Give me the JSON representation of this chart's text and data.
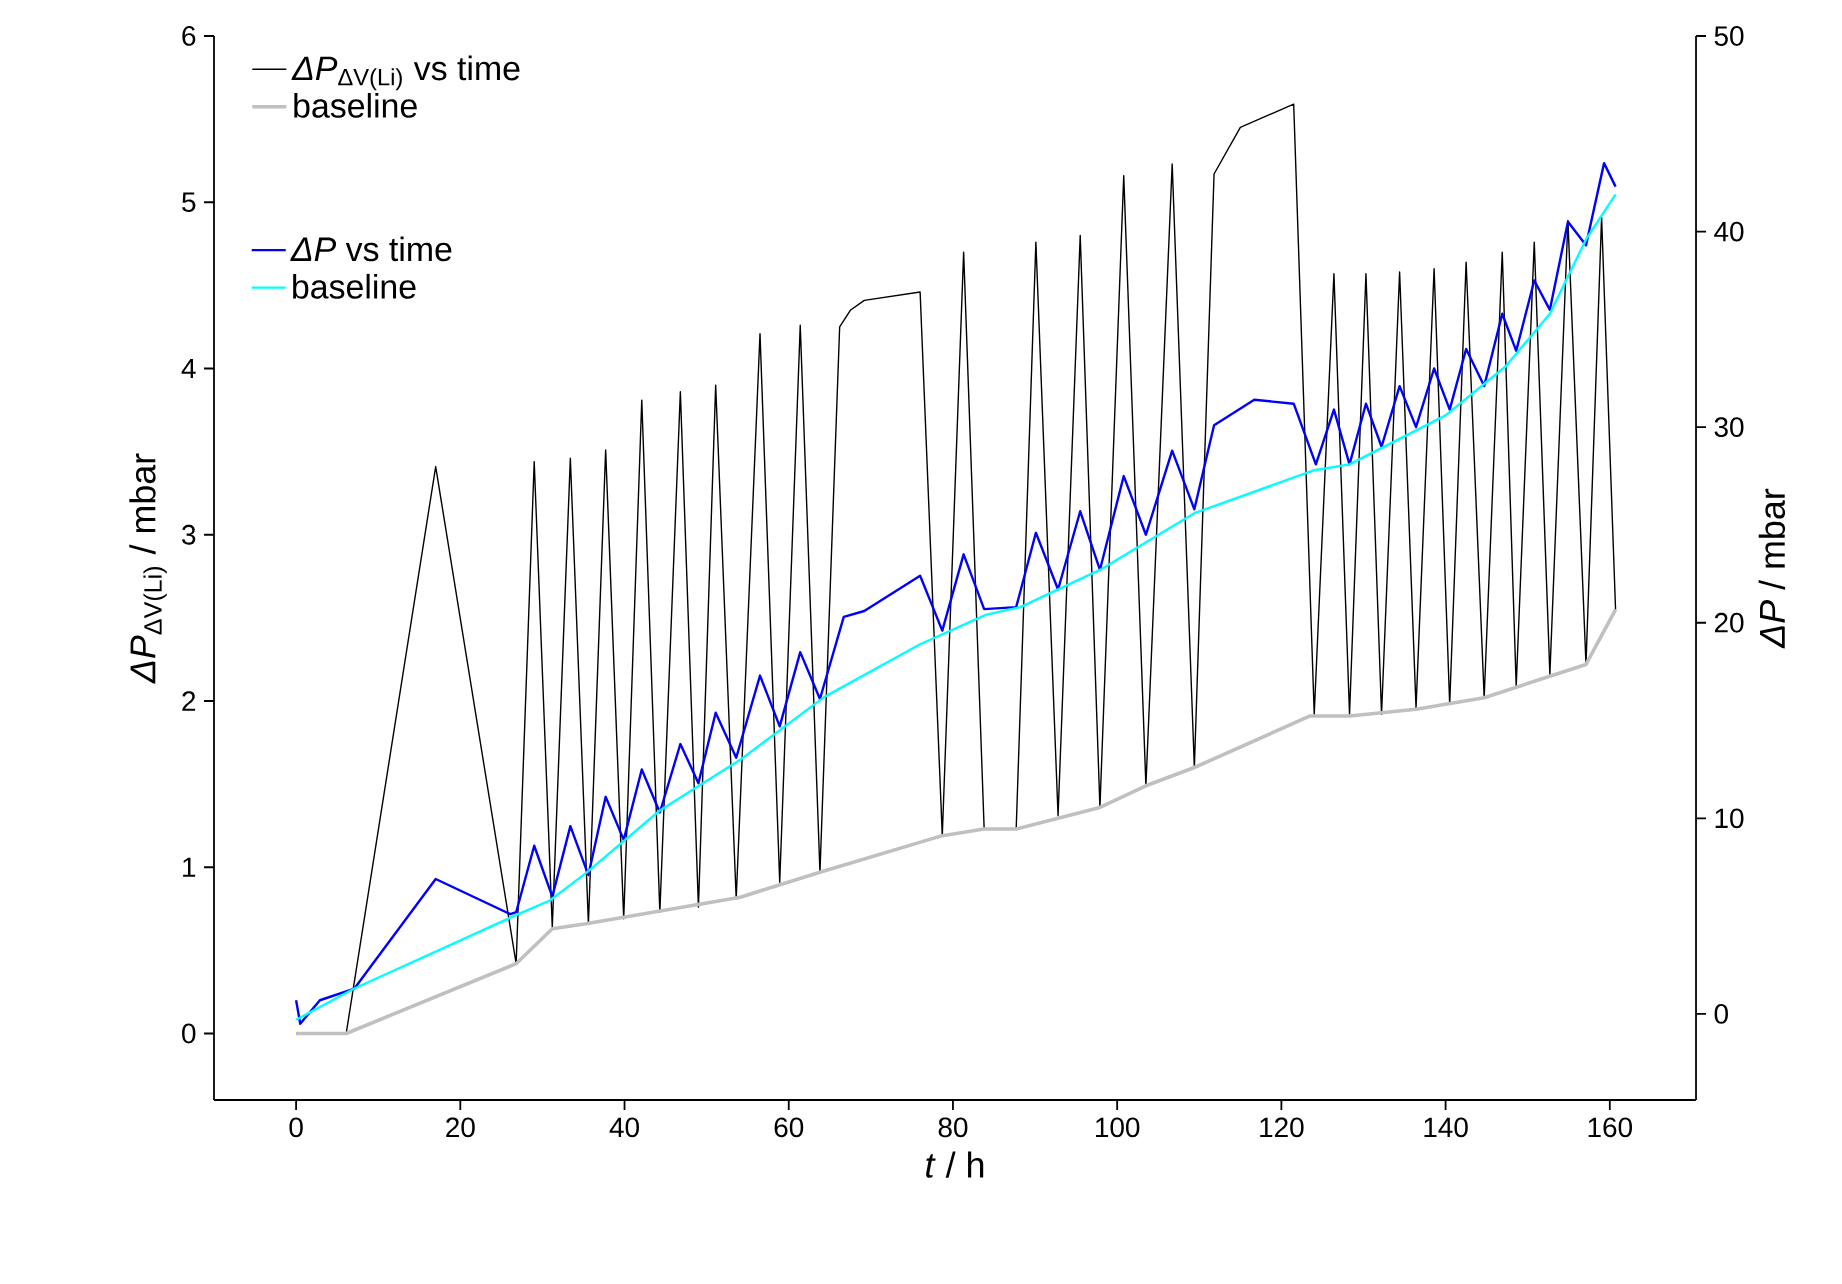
{
  "chart_data": {
    "type": "line",
    "xlabel": "*t* / h",
    "ylabel": "*ΔP*$_{ΔV(Li)}$ / mbar",
    "y2label": "*ΔP* / mbar",
    "xlim": [
      -10,
      170.5
    ],
    "xticks": [
      0,
      20,
      40,
      60,
      80,
      100,
      120,
      140,
      160
    ],
    "ylim": [
      -0.4,
      6
    ],
    "yticks": [
      0,
      1,
      2,
      3,
      4,
      5,
      6
    ],
    "y2lim": [
      -4.4,
      50
    ],
    "y2ticks": [
      0,
      10,
      20,
      30,
      40,
      50
    ],
    "legend": "top left",
    "grid": false,
    "series": [
      {
        "name": "*ΔP*$_{ΔV(Li)}$ vs time",
        "color": "#000000",
        "axis": "y",
        "x": [
          0,
          6.1,
          17.0,
          26.8,
          29.0,
          31.2,
          33.4,
          35.6,
          37.7,
          39.9,
          42.1,
          44.3,
          46.8,
          49.0,
          51.1,
          53.6,
          56.5,
          58.9,
          61.4,
          63.8,
          66.2,
          67.5,
          69.2,
          76.0,
          78.7,
          81.3,
          83.8,
          87.7,
          90.1,
          92.8,
          95.5,
          97.9,
          100.8,
          103.5,
          106.7,
          109.4,
          111.8,
          115.0,
          121.5,
          124.0,
          126.4,
          128.3,
          130.3,
          132.2,
          134.4,
          136.4,
          138.6,
          140.5,
          142.5,
          144.7,
          146.9,
          148.6,
          150.8,
          152.7,
          154.9,
          157.1,
          159.0,
          160.7
        ],
        "values": [
          0,
          0,
          3.41,
          0.42,
          3.44,
          0.64,
          3.46,
          0.66,
          3.51,
          0.69,
          3.81,
          0.73,
          3.86,
          0.76,
          3.9,
          0.81,
          4.21,
          0.91,
          4.26,
          0.97,
          4.25,
          4.35,
          4.41,
          4.46,
          1.19,
          4.7,
          1.23,
          1.23,
          4.76,
          1.31,
          4.8,
          1.36,
          5.16,
          1.49,
          5.23,
          1.6,
          5.17,
          5.45,
          5.59,
          1.92,
          4.57,
          1.92,
          4.57,
          1.92,
          4.58,
          1.96,
          4.6,
          1.98,
          4.64,
          2.02,
          4.7,
          2.09,
          4.76,
          2.16,
          4.89,
          2.22,
          4.91,
          2.55
        ]
      },
      {
        "name": "baseline",
        "color": "#c0c0c0",
        "axis": "y",
        "x": [
          0,
          6.1,
          26.8,
          31.2,
          35.3,
          54.1,
          63.8,
          78.7,
          83.8,
          87.7,
          97.9,
          103.5,
          109.4,
          123.5,
          128.3,
          136.4,
          144.7,
          157.1,
          160.7
        ],
        "values": [
          0,
          0,
          0.42,
          0.63,
          0.66,
          0.82,
          0.97,
          1.19,
          1.23,
          1.23,
          1.36,
          1.49,
          1.6,
          1.91,
          1.91,
          1.95,
          2.02,
          2.22,
          2.55
        ]
      },
      {
        "name": "*ΔP* vs time",
        "color": "#0000ff",
        "axis": "y2",
        "x": [
          0,
          0.5,
          2.9,
          7.1,
          17.0,
          26.1,
          26.8,
          29.0,
          31.2,
          33.4,
          35.6,
          37.7,
          39.9,
          42.1,
          44.3,
          46.8,
          49.0,
          51.1,
          53.6,
          56.5,
          58.9,
          61.4,
          63.8,
          66.7,
          69.2,
          76.0,
          78.7,
          81.3,
          83.8,
          87.7,
          90.1,
          92.8,
          95.5,
          97.9,
          100.8,
          103.5,
          106.7,
          109.4,
          111.8,
          116.7,
          121.5,
          124.2,
          126.4,
          128.3,
          130.3,
          132.2,
          134.4,
          136.4,
          138.6,
          140.5,
          142.5,
          144.7,
          146.9,
          148.6,
          150.8,
          152.7,
          154.9,
          157.1,
          159.3,
          160.7
        ],
        "values": [
          0.7,
          -0.5,
          0.7,
          1.3,
          6.9,
          5.1,
          5.2,
          8.6,
          6.0,
          9.6,
          7.1,
          11.1,
          8.9,
          12.5,
          10.3,
          13.8,
          11.8,
          15.4,
          13.1,
          17.3,
          14.7,
          18.5,
          16.1,
          20.3,
          20.6,
          22.4,
          19.6,
          23.5,
          20.7,
          20.8,
          24.6,
          21.7,
          25.7,
          22.7,
          27.5,
          24.5,
          28.8,
          25.8,
          30.1,
          31.4,
          31.2,
          28.1,
          30.9,
          28.1,
          31.2,
          29.0,
          32.1,
          30.0,
          33.0,
          30.9,
          34.0,
          32.1,
          35.8,
          33.9,
          37.5,
          36.0,
          40.5,
          39.3,
          43.5,
          42.3
        ]
      },
      {
        "name": "baseline",
        "color": "#00ffff",
        "axis": "y2",
        "x": [
          0,
          7.1,
          26.5,
          30.9,
          35.3,
          44.3,
          54.1,
          64.3,
          76.0,
          84.0,
          88.2,
          97.9,
          109.4,
          124.0,
          128.3,
          140.0,
          147.3,
          152.7,
          157.1,
          160.7
        ],
        "values": [
          -0.3,
          1.3,
          5.0,
          5.8,
          7.2,
          10.4,
          13.0,
          16.2,
          18.9,
          20.4,
          20.8,
          22.7,
          25.6,
          27.8,
          28.1,
          30.6,
          33.1,
          35.8,
          39.6,
          41.9
        ]
      }
    ]
  }
}
